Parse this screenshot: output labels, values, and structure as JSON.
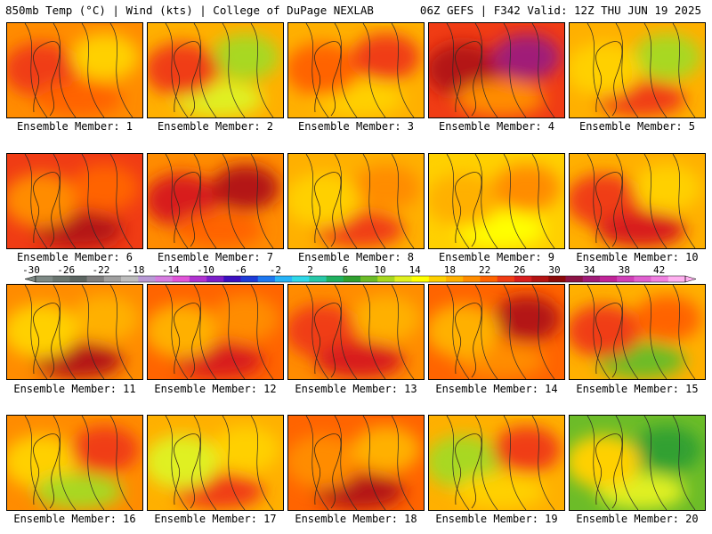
{
  "header": {
    "left": "850mb Temp (°C) | Wind (kts) | College of DuPage NEXLAB",
    "right": "06Z GEFS | F342 Valid: 12Z THU JUN 19 2025"
  },
  "legend": {
    "labels": [
      "-30",
      "-26",
      "-22",
      "-18",
      "-14",
      "-10",
      "-6",
      "-2",
      "2",
      "6",
      "10",
      "14",
      "18",
      "22",
      "26",
      "30",
      "34",
      "38",
      "42"
    ],
    "colors": [
      "#7e8a86",
      "#6a7670",
      "#5c6662",
      "#7f7f7f",
      "#a0a0a0",
      "#bdbdbd",
      "#b89ad6",
      "#d67de0",
      "#e055d8",
      "#b033d0",
      "#7b1fc8",
      "#3c10c0",
      "#1e3cd8",
      "#1e78f0",
      "#28b4f8",
      "#30d8e8",
      "#28c8a8",
      "#20b060",
      "#30a030",
      "#6cbc28",
      "#a8d820",
      "#e0f020",
      "#ffff00",
      "#ffd000",
      "#ffb000",
      "#ff8c00",
      "#ff6400",
      "#f03c14",
      "#d81e1e",
      "#b41414",
      "#8c0a0a",
      "#8c1446",
      "#a01c78",
      "#c02498",
      "#d040b8",
      "#e060d0",
      "#f080e0",
      "#ffb0f0"
    ]
  },
  "members": [
    {
      "label": "Ensemble Member: 1",
      "base": "#ff8c00",
      "blobs": [
        {
          "c": "#f03c14"
        },
        {
          "c": "#ffd000"
        },
        {
          "c": "#ff6400"
        }
      ]
    },
    {
      "label": "Ensemble Member: 2",
      "base": "#ffb000",
      "blobs": [
        {
          "c": "#a8d820"
        },
        {
          "c": "#e0f020"
        },
        {
          "c": "#f03c14"
        }
      ]
    },
    {
      "label": "Ensemble Member: 3",
      "base": "#ffb000",
      "blobs": [
        {
          "c": "#ffd000"
        },
        {
          "c": "#ff6400"
        },
        {
          "c": "#f03c14"
        }
      ]
    },
    {
      "label": "Ensemble Member: 4",
      "base": "#f03c14",
      "blobs": [
        {
          "c": "#b41414"
        },
        {
          "c": "#a01c78"
        },
        {
          "c": "#ff8c00"
        }
      ]
    },
    {
      "label": "Ensemble Member: 5",
      "base": "#ffb000",
      "blobs": [
        {
          "c": "#a8d820"
        },
        {
          "c": "#f03c14"
        },
        {
          "c": "#ffd000"
        }
      ]
    },
    {
      "label": "Ensemble Member: 6",
      "base": "#f03c14",
      "blobs": [
        {
          "c": "#b41414"
        },
        {
          "c": "#ff8c00"
        },
        {
          "c": "#ff6400"
        }
      ]
    },
    {
      "label": "Ensemble Member: 7",
      "base": "#ff8c00",
      "blobs": [
        {
          "c": "#d81e1e"
        },
        {
          "c": "#b41414"
        },
        {
          "c": "#ff6400"
        }
      ]
    },
    {
      "label": "Ensemble Member: 8",
      "base": "#ffb000",
      "blobs": [
        {
          "c": "#ff8c00"
        },
        {
          "c": "#f03c14"
        },
        {
          "c": "#ffd000"
        }
      ]
    },
    {
      "label": "Ensemble Member: 9",
      "base": "#ffd000",
      "blobs": [
        {
          "c": "#ffff00"
        },
        {
          "c": "#ffb000"
        },
        {
          "c": "#ff8c00"
        }
      ]
    },
    {
      "label": "Ensemble Member: 10",
      "base": "#ffb000",
      "blobs": [
        {
          "c": "#f03c14"
        },
        {
          "c": "#ffd000"
        },
        {
          "c": "#d81e1e"
        }
      ]
    },
    {
      "label": "Ensemble Member: 11",
      "base": "#ff8c00",
      "blobs": [
        {
          "c": "#ffb000"
        },
        {
          "c": "#b41414"
        },
        {
          "c": "#ffd000"
        }
      ]
    },
    {
      "label": "Ensemble Member: 12",
      "base": "#ff6400",
      "blobs": [
        {
          "c": "#d81e1e"
        },
        {
          "c": "#ffb000"
        },
        {
          "c": "#ff8c00"
        }
      ]
    },
    {
      "label": "Ensemble Member: 13",
      "base": "#ff8c00",
      "blobs": [
        {
          "c": "#f03c14"
        },
        {
          "c": "#ffb000"
        },
        {
          "c": "#d81e1e"
        }
      ]
    },
    {
      "label": "Ensemble Member: 14",
      "base": "#ff6400",
      "blobs": [
        {
          "c": "#b41414"
        },
        {
          "c": "#ff8c00"
        },
        {
          "c": "#ffb000"
        }
      ]
    },
    {
      "label": "Ensemble Member: 15",
      "base": "#ffb000",
      "blobs": [
        {
          "c": "#6cbc28"
        },
        {
          "c": "#f03c14"
        },
        {
          "c": "#ff6400"
        }
      ]
    },
    {
      "label": "Ensemble Member: 16",
      "base": "#ff8c00",
      "blobs": [
        {
          "c": "#ffd000"
        },
        {
          "c": "#f03c14"
        },
        {
          "c": "#a8d820"
        }
      ]
    },
    {
      "label": "Ensemble Member: 17",
      "base": "#ffb000",
      "blobs": [
        {
          "c": "#ffd000"
        },
        {
          "c": "#f03c14"
        },
        {
          "c": "#e0f020"
        }
      ]
    },
    {
      "label": "Ensemble Member: 18",
      "base": "#ff6400",
      "blobs": [
        {
          "c": "#b41414"
        },
        {
          "c": "#ff8c00"
        },
        {
          "c": "#ffb000"
        }
      ]
    },
    {
      "label": "Ensemble Member: 19",
      "base": "#ffb000",
      "blobs": [
        {
          "c": "#a8d820"
        },
        {
          "c": "#f03c14"
        },
        {
          "c": "#ffd000"
        }
      ]
    },
    {
      "label": "Ensemble Member: 20",
      "base": "#6cbc28",
      "blobs": [
        {
          "c": "#30a030"
        },
        {
          "c": "#e0f020"
        },
        {
          "c": "#ffd000"
        }
      ]
    }
  ]
}
